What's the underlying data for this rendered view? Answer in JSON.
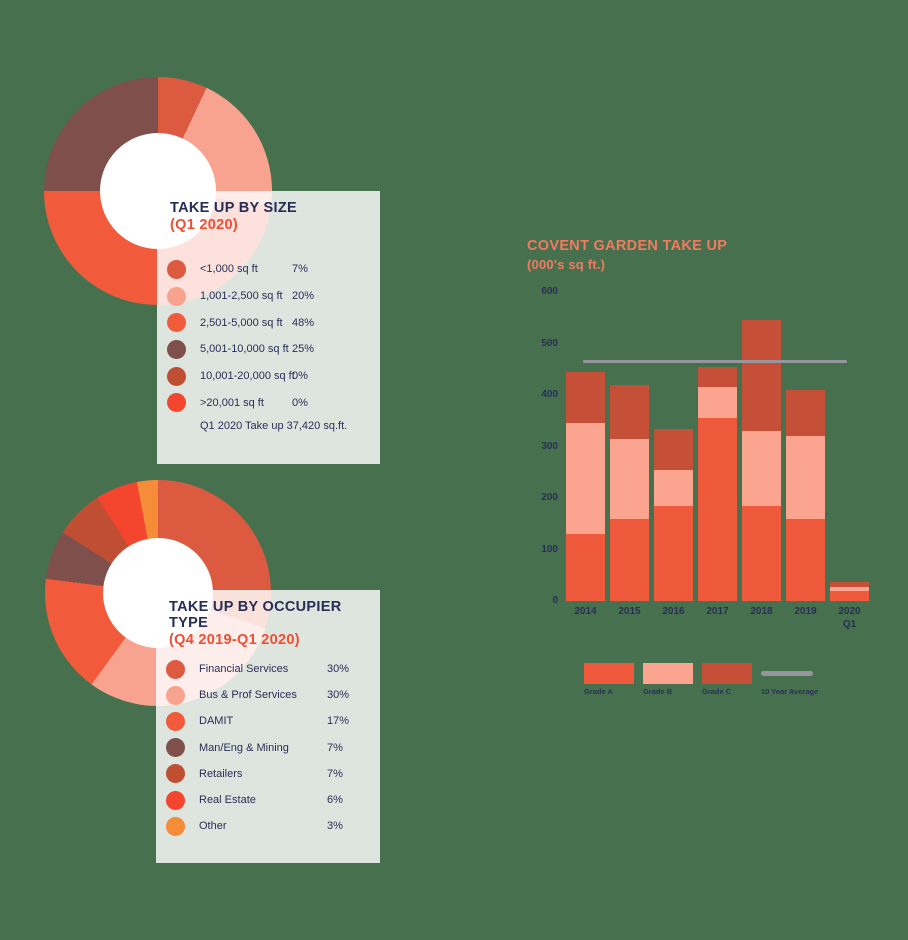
{
  "page": {
    "background_color": "#47714E",
    "card_color": "#FFFFFF",
    "navy_text": "#2A2E55",
    "accent_orange": "#F04E33"
  },
  "chart_data": [
    {
      "type": "pie",
      "donut": true,
      "title": "TAKE UP BY SIZE",
      "subtitle": "(Q1 2020)",
      "labels": [
        "<1,000 sq ft",
        "1,001-2,500 sq ft",
        "2,501-5,000 sq ft",
        "5,001-10,000 sq ft",
        "10,001-20,000 sq ft",
        ">20,001 sq ft"
      ],
      "values": [
        7,
        20,
        48,
        25,
        0,
        0
      ],
      "value_labels": [
        "7%",
        "20%",
        "48%",
        "25%",
        "0%",
        "0%"
      ],
      "colors": [
        "#DB5A40",
        "#F8A38F",
        "#F15B3C",
        "#7E4F4B",
        "#C04E33",
        "#F4452F"
      ],
      "start_angle_deg": 0,
      "footnote": "Q1 2020 Take up 37,420 sq.ft."
    },
    {
      "type": "pie",
      "donut": true,
      "title": "TAKE UP BY OCCUPIER TYPE",
      "subtitle": "(Q4 2019-Q1 2020)",
      "labels": [
        "Financial Services",
        "Bus & Prof Services",
        "DAMIT",
        "Man/Eng & Mining",
        "Retailers",
        "Real Estate",
        "Other"
      ],
      "values": [
        30,
        30,
        17,
        7,
        7,
        6,
        3
      ],
      "value_labels": [
        "30%",
        "30%",
        "17%",
        "7%",
        "7%",
        "6%",
        "3%"
      ],
      "colors": [
        "#DB5A40",
        "#F8A38F",
        "#F15B3C",
        "#7E4F4B",
        "#C04E33",
        "#F4452F",
        "#F68B38"
      ],
      "start_angle_deg": 0
    },
    {
      "type": "bar",
      "stacked": true,
      "title": "COVENT GARDEN TAKE UP",
      "subtitle": "(000's sq ft.)",
      "categories": [
        "2014",
        "2015",
        "2016",
        "2017",
        "2018",
        "2019",
        "2020"
      ],
      "category_sublabels": [
        "",
        "",
        "",
        "",
        "",
        "",
        "Q1"
      ],
      "series": [
        {
          "name": "Grade A",
          "color": "#EE5A3B",
          "values": [
            130,
            160,
            185,
            355,
            185,
            160,
            19
          ]
        },
        {
          "name": "Grade B",
          "color": "#FBA48F",
          "values": [
            215,
            155,
            70,
            60,
            145,
            160,
            9
          ]
        },
        {
          "name": "Grade C",
          "color": "#C55037",
          "values": [
            100,
            105,
            80,
            40,
            215,
            90,
            9
          ]
        }
      ],
      "totals": [
        445,
        420,
        335,
        455,
        545,
        410,
        37
      ],
      "average_line": {
        "label": "10 Year Average",
        "value": 465,
        "color": "#96969C"
      },
      "ylim": [
        0,
        600
      ],
      "y_ticks": [
        600,
        500,
        400,
        300,
        200,
        100,
        0
      ],
      "xlabel": "",
      "ylabel": "",
      "grid": false,
      "legend_position": "bottom"
    }
  ]
}
